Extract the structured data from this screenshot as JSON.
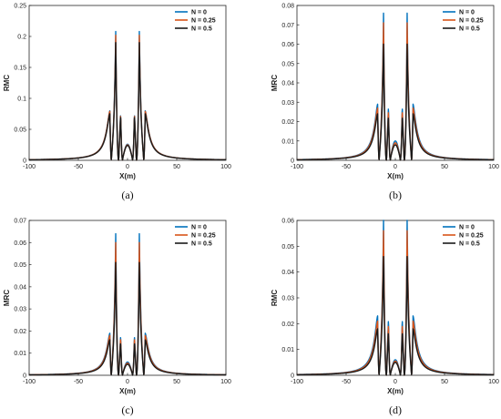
{
  "chart_data": [
    {
      "type": "line",
      "caption": "(a)",
      "ylabel": "RMC",
      "xlabel": "X(m)",
      "xlim": [
        -100,
        100
      ],
      "ylim": [
        0,
        0.25
      ],
      "xticks": [
        -100,
        -50,
        0,
        50,
        100
      ],
      "yticks": [
        0,
        0.05,
        0.1,
        0.15,
        0.2,
        0.25
      ],
      "ytick_labels": [
        "0",
        "0.05",
        "0.1",
        "0.15",
        "0.2",
        "0.25"
      ],
      "legend_position": "top-right",
      "series": [
        {
          "name": "N = 0",
          "color": "#0072BD",
          "main_peak": 0.208,
          "outer_peak": 0.08,
          "inner_peak": 0.076,
          "center": 0.026
        },
        {
          "name": "N = 0.25",
          "color": "#D95319",
          "main_peak": 0.202,
          "outer_peak": 0.079,
          "inner_peak": 0.075,
          "center": 0.025
        },
        {
          "name": "N = 0.5",
          "color": "#1a1a1a",
          "main_peak": 0.19,
          "outer_peak": 0.075,
          "inner_peak": 0.073,
          "center": 0.024
        }
      ]
    },
    {
      "type": "line",
      "caption": "(b)",
      "ylabel": "MRC",
      "xlabel": "X(m)",
      "xlim": [
        -100,
        100
      ],
      "ylim": [
        0,
        0.08
      ],
      "xticks": [
        -100,
        -50,
        0,
        50,
        100
      ],
      "yticks": [
        0,
        0.01,
        0.02,
        0.03,
        0.04,
        0.05,
        0.06,
        0.07,
        0.08
      ],
      "ytick_labels": [
        "0",
        "0.01",
        "0.02",
        "0.03",
        "0.04",
        "0.05",
        "0.06",
        "0.07",
        "0.08"
      ],
      "legend_position": "top-right",
      "series": [
        {
          "name": "N = 0",
          "color": "#0072BD",
          "main_peak": 0.076,
          "outer_peak": 0.029,
          "inner_peak": 0.028,
          "center": 0.01
        },
        {
          "name": "N = 0.25",
          "color": "#D95319",
          "main_peak": 0.071,
          "outer_peak": 0.027,
          "inner_peak": 0.026,
          "center": 0.009
        },
        {
          "name": "N = 0.5",
          "color": "#1a1a1a",
          "main_peak": 0.06,
          "outer_peak": 0.024,
          "inner_peak": 0.023,
          "center": 0.008
        }
      ]
    },
    {
      "type": "line",
      "caption": "(c)",
      "ylabel": "MRC",
      "xlabel": "X(m)",
      "xlim": [
        -100,
        100
      ],
      "ylim": [
        0,
        0.07
      ],
      "xticks": [
        -100,
        -50,
        0,
        50,
        100
      ],
      "yticks": [
        0,
        0.01,
        0.02,
        0.03,
        0.04,
        0.05,
        0.06,
        0.07
      ],
      "ytick_labels": [
        "0",
        "0.01",
        "0.02",
        "0.03",
        "0.04",
        "0.05",
        "0.06",
        "0.07"
      ],
      "legend_position": "top-right",
      "series": [
        {
          "name": "N = 0",
          "color": "#0072BD",
          "main_peak": 0.064,
          "outer_peak": 0.019,
          "inner_peak": 0.018,
          "center": 0.006
        },
        {
          "name": "N = 0.25",
          "color": "#D95319",
          "main_peak": 0.06,
          "outer_peak": 0.018,
          "inner_peak": 0.017,
          "center": 0.0055
        },
        {
          "name": "N = 0.5",
          "color": "#1a1a1a",
          "main_peak": 0.051,
          "outer_peak": 0.016,
          "inner_peak": 0.015,
          "center": 0.005
        }
      ]
    },
    {
      "type": "line",
      "caption": "(d)",
      "ylabel": "RMC",
      "xlabel": "X(m)",
      "xlim": [
        -100,
        100
      ],
      "ylim": [
        0,
        0.06
      ],
      "xticks": [
        -100,
        -50,
        0,
        50,
        100
      ],
      "yticks": [
        0,
        0.01,
        0.02,
        0.03,
        0.04,
        0.05,
        0.06
      ],
      "ytick_labels": [
        "0",
        "0.01",
        "0.02",
        "0.03",
        "0.04",
        "0.05",
        "0.06"
      ],
      "legend_position": "top-right",
      "series": [
        {
          "name": "N = 0",
          "color": "#0072BD",
          "main_peak": 0.06,
          "outer_peak": 0.023,
          "inner_peak": 0.022,
          "center": 0.006
        },
        {
          "name": "N = 0.25",
          "color": "#D95319",
          "main_peak": 0.056,
          "outer_peak": 0.021,
          "inner_peak": 0.02,
          "center": 0.0055
        },
        {
          "name": "N = 0.5",
          "color": "#1a1a1a",
          "main_peak": 0.046,
          "outer_peak": 0.018,
          "inner_peak": 0.017,
          "center": 0.005
        }
      ]
    }
  ]
}
